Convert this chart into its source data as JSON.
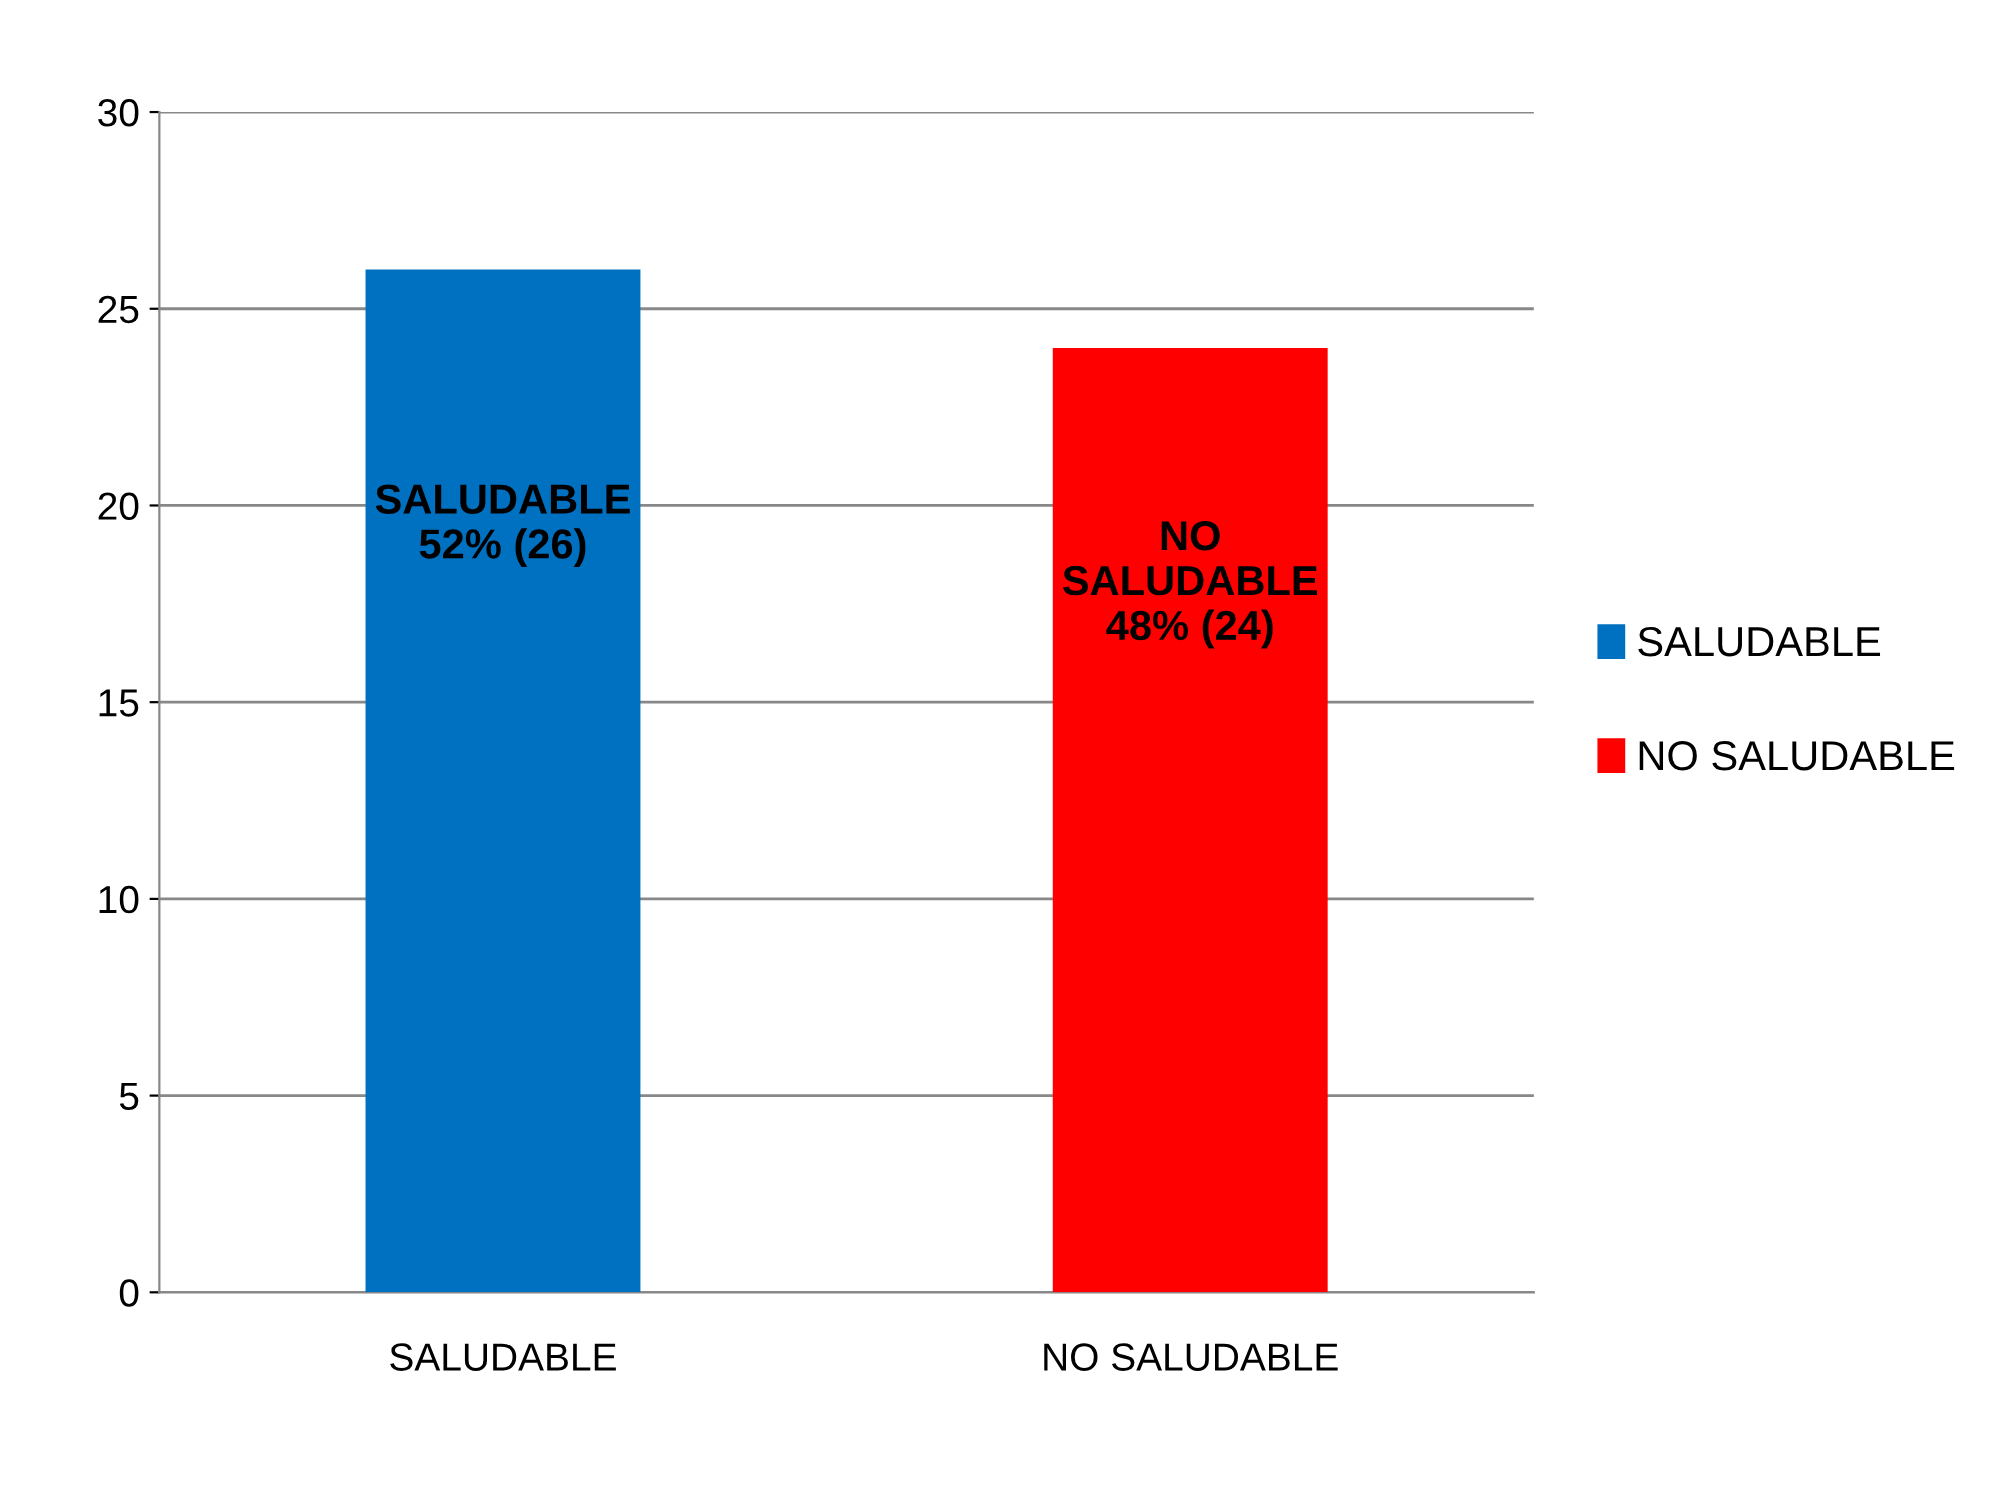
{
  "chart_data": {
    "type": "bar",
    "categories": [
      "SALUDABLE",
      "NO SALUDABLE"
    ],
    "series": [
      {
        "name": "SALUDABLE",
        "color": "#0070c0",
        "values": [
          26,
          null
        ],
        "value_labels": [
          "SALUDABLE\n52% (26)",
          null
        ]
      },
      {
        "name": "NO SALUDABLE",
        "color": "#ff0000",
        "values": [
          null,
          24
        ],
        "value_labels": [
          null,
          "NO\nSALUDABLE\n48% (24)"
        ]
      }
    ],
    "ylim": [
      0,
      30
    ],
    "yticks": [
      0,
      5,
      10,
      15,
      20,
      25,
      30
    ],
    "grid": "y",
    "legend": "right"
  }
}
